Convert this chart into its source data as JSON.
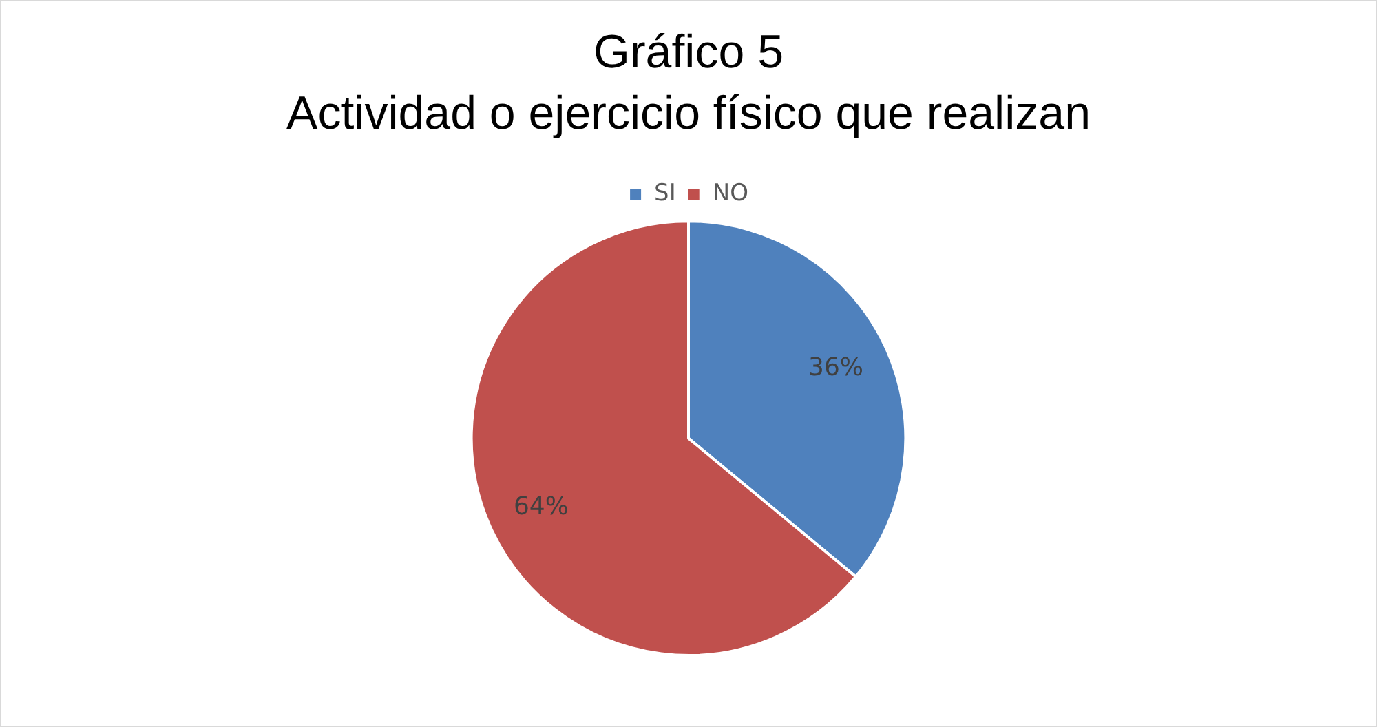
{
  "chart_data": {
    "type": "pie",
    "title": "Gráfico 5",
    "subtitle": "Actividad o ejercicio físico que realizan",
    "categories": [
      "SI",
      "NO"
    ],
    "values": [
      36,
      64
    ],
    "colors": [
      "#4f81bd",
      "#c0504d"
    ],
    "value_labels": [
      "36%",
      "64%"
    ],
    "legend": "top"
  }
}
